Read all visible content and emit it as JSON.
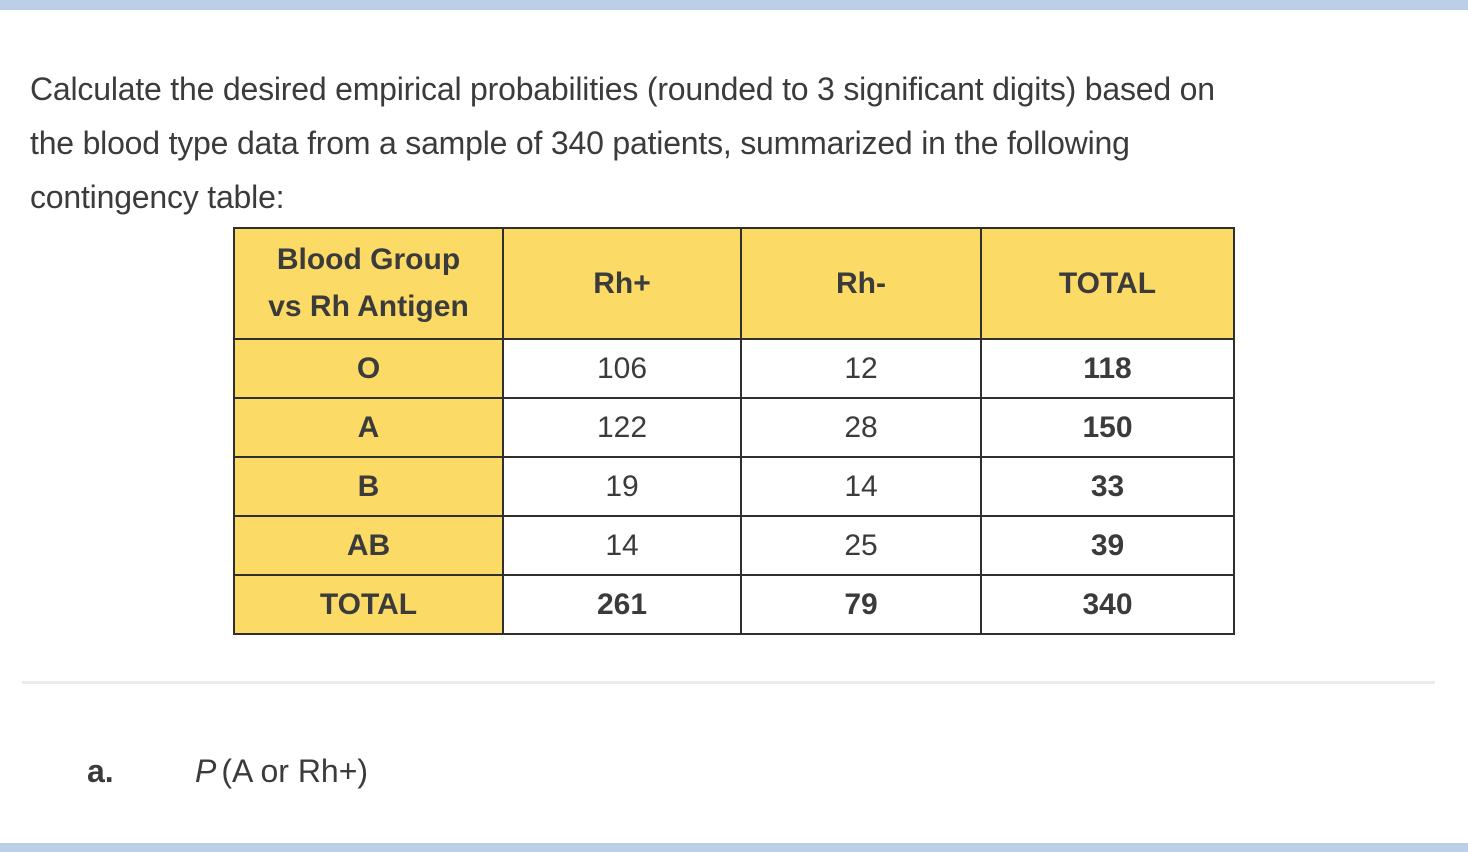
{
  "intro_text": "Calculate the desired empirical probabilities (rounded to 3 significant digits) based on\nthe blood type data from a sample of 340 patients, summarized in the following\ncontingency table:",
  "table": {
    "corner_header": "Blood Group\nvs Rh Antigen",
    "columns": [
      "Rh+",
      "Rh-",
      "TOTAL"
    ],
    "rows": [
      {
        "label": "O",
        "rh_pos": "106",
        "rh_neg": "12",
        "total": "118"
      },
      {
        "label": "A",
        "rh_pos": "122",
        "rh_neg": "28",
        "total": "150"
      },
      {
        "label": "B",
        "rh_pos": "19",
        "rh_neg": "14",
        "total": "33"
      },
      {
        "label": "AB",
        "rh_pos": "14",
        "rh_neg": "25",
        "total": "39"
      },
      {
        "label": "TOTAL",
        "rh_pos": "261",
        "rh_neg": "79",
        "total": "340"
      }
    ],
    "sample_size": "340"
  },
  "question": {
    "label": "a.",
    "p_symbol": "P",
    "expression": "(A or Rh+)"
  },
  "colors": {
    "header_yellow": "#fbda65",
    "accent_blue": "#bccfe8",
    "divider_gray": "#ececec",
    "text_dark": "#3b3b3b",
    "table_border": "#2f2f2f"
  }
}
